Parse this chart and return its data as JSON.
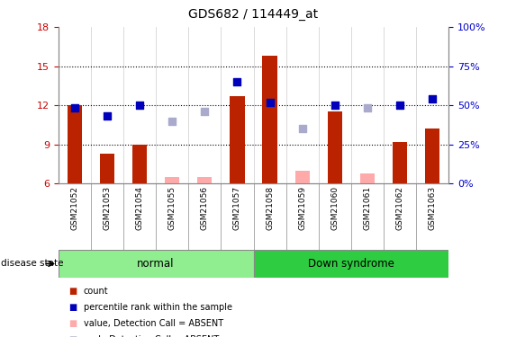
{
  "title": "GDS682 / 114449_at",
  "samples": [
    "GSM21052",
    "GSM21053",
    "GSM21054",
    "GSM21055",
    "GSM21056",
    "GSM21057",
    "GSM21058",
    "GSM21059",
    "GSM21060",
    "GSM21061",
    "GSM21062",
    "GSM21063"
  ],
  "ylim_left": [
    6,
    18
  ],
  "ylim_right": [
    0,
    100
  ],
  "yticks_left": [
    6,
    9,
    12,
    15,
    18
  ],
  "yticks_right": [
    0,
    25,
    50,
    75,
    100
  ],
  "ytick_labels_right": [
    "0%",
    "25%",
    "50%",
    "75%",
    "100%"
  ],
  "red_bars": [
    12.0,
    8.3,
    9.0,
    null,
    null,
    12.7,
    15.8,
    null,
    11.5,
    null,
    9.2,
    10.2
  ],
  "red_bars_absent": [
    null,
    null,
    null,
    6.5,
    6.5,
    null,
    null,
    7.0,
    null,
    6.8,
    null,
    null
  ],
  "blue_squares": [
    11.8,
    11.2,
    12.0,
    null,
    null,
    13.8,
    12.2,
    null,
    12.0,
    null,
    12.0,
    12.5
  ],
  "blue_squares_absent": [
    null,
    null,
    null,
    10.8,
    11.5,
    null,
    null,
    10.2,
    null,
    11.8,
    null,
    null
  ],
  "normal_group_indices": [
    0,
    1,
    2,
    3,
    4,
    5
  ],
  "down_group_indices": [
    6,
    7,
    8,
    9,
    10,
    11
  ],
  "group_labels": [
    "normal",
    "Down syndrome"
  ],
  "normal_color": "#90EE90",
  "down_color": "#2ECC40",
  "bar_color_red": "#BB2200",
  "bar_color_pink": "#FFAAAA",
  "sq_color_blue": "#0000BB",
  "sq_color_lightblue": "#AAAACC",
  "tick_label_color_left": "#CC0000",
  "tick_label_color_right": "#0000CC",
  "legend_items": [
    "count",
    "percentile rank within the sample",
    "value, Detection Call = ABSENT",
    "rank, Detection Call = ABSENT"
  ]
}
